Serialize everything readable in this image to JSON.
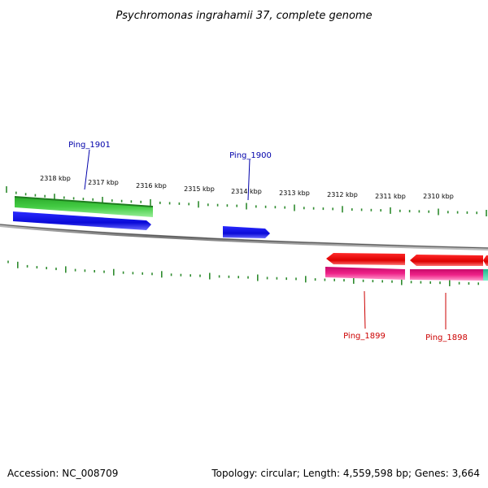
{
  "title": "Psychromonas ingrahamii 37, complete genome",
  "footer": {
    "accession": "Accession: NC_008709",
    "summary": "Topology: circular; Length: 4,559,598 bp; Genes: 3,664"
  },
  "colors": {
    "backbone": "#8a8a8a",
    "ticks": "#2e8b2e",
    "forward_cds": "#1010e0",
    "reverse_cds": "#e00000",
    "forward_gene": "#33bb33",
    "reverse_gene": "#e0107a",
    "teal_feature": "#2fd6a8",
    "forward_label": "#0000aa",
    "reverse_label": "#cc0000"
  },
  "tick_labels": [
    "2318 kbp",
    "2317 kbp",
    "2316 kbp",
    "2315 kbp",
    "2314 kbp",
    "2313 kbp",
    "2312 kbp",
    "2311 kbp",
    "2310 kbp"
  ],
  "genes": [
    {
      "name": "Ping_1901",
      "strand": "forward"
    },
    {
      "name": "Ping_1900",
      "strand": "forward"
    },
    {
      "name": "Ping_1899",
      "strand": "reverse"
    },
    {
      "name": "Ping_1898",
      "strand": "reverse"
    }
  ]
}
